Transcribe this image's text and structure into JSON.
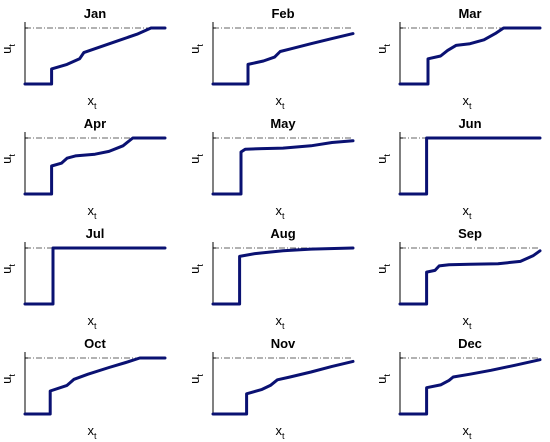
{
  "chart_data": {
    "type": "line",
    "grid": false,
    "series_color": "#0a1172",
    "ref_color": "#666666",
    "panels": [
      {
        "title": "Jan",
        "xlabel": "x",
        "xlabel_sub": "t",
        "ylabel": "u",
        "ylabel_sub": "t",
        "curve": [
          [
            0,
            0
          ],
          [
            0.19,
            0
          ],
          [
            0.19,
            0.27
          ],
          [
            0.3,
            0.35
          ],
          [
            0.39,
            0.45
          ],
          [
            0.42,
            0.56
          ],
          [
            0.5,
            0.63
          ],
          [
            0.65,
            0.76
          ],
          [
            0.8,
            0.89
          ],
          [
            0.9,
            1.0
          ],
          [
            1.0,
            1.0
          ]
        ]
      },
      {
        "title": "Feb",
        "xlabel": "x",
        "xlabel_sub": "t",
        "ylabel": "u",
        "ylabel_sub": "t",
        "curve": [
          [
            0,
            0
          ],
          [
            0.25,
            0
          ],
          [
            0.25,
            0.35
          ],
          [
            0.36,
            0.41
          ],
          [
            0.44,
            0.48
          ],
          [
            0.48,
            0.58
          ],
          [
            0.56,
            0.63
          ],
          [
            0.7,
            0.72
          ],
          [
            0.85,
            0.81
          ],
          [
            1.0,
            0.9
          ]
        ]
      },
      {
        "title": "Mar",
        "xlabel": "x",
        "xlabel_sub": "t",
        "ylabel": "u",
        "ylabel_sub": "t",
        "curve": [
          [
            0,
            0
          ],
          [
            0.2,
            0
          ],
          [
            0.2,
            0.45
          ],
          [
            0.29,
            0.5
          ],
          [
            0.34,
            0.6
          ],
          [
            0.4,
            0.69
          ],
          [
            0.5,
            0.72
          ],
          [
            0.6,
            0.79
          ],
          [
            0.68,
            0.9
          ],
          [
            0.74,
            1.0
          ],
          [
            1.0,
            1.0
          ]
        ]
      },
      {
        "title": "Apr",
        "xlabel": "x",
        "xlabel_sub": "t",
        "ylabel": "u",
        "ylabel_sub": "t",
        "curve": [
          [
            0,
            0
          ],
          [
            0.19,
            0
          ],
          [
            0.19,
            0.5
          ],
          [
            0.26,
            0.55
          ],
          [
            0.3,
            0.64
          ],
          [
            0.36,
            0.68
          ],
          [
            0.5,
            0.71
          ],
          [
            0.6,
            0.76
          ],
          [
            0.7,
            0.86
          ],
          [
            0.77,
            1.0
          ],
          [
            1.0,
            1.0
          ]
        ]
      },
      {
        "title": "May",
        "xlabel": "x",
        "xlabel_sub": "t",
        "ylabel": "u",
        "ylabel_sub": "t",
        "curve": [
          [
            0,
            0
          ],
          [
            0.2,
            0
          ],
          [
            0.2,
            0.75
          ],
          [
            0.23,
            0.8
          ],
          [
            0.35,
            0.81
          ],
          [
            0.5,
            0.82
          ],
          [
            0.7,
            0.86
          ],
          [
            0.85,
            0.92
          ],
          [
            1.0,
            0.95
          ]
        ]
      },
      {
        "title": "Jun",
        "xlabel": "x",
        "xlabel_sub": "t",
        "ylabel": "u",
        "ylabel_sub": "t",
        "curve": [
          [
            0,
            0
          ],
          [
            0.19,
            0
          ],
          [
            0.19,
            1.0
          ],
          [
            1.0,
            1.0
          ]
        ]
      },
      {
        "title": "Jul",
        "xlabel": "x",
        "xlabel_sub": "t",
        "ylabel": "u",
        "ylabel_sub": "t",
        "curve": [
          [
            0,
            0
          ],
          [
            0.2,
            0
          ],
          [
            0.2,
            1.0
          ],
          [
            1.0,
            1.0
          ]
        ]
      },
      {
        "title": "Aug",
        "xlabel": "x",
        "xlabel_sub": "t",
        "ylabel": "u",
        "ylabel_sub": "t",
        "curve": [
          [
            0,
            0
          ],
          [
            0.19,
            0
          ],
          [
            0.19,
            0.85
          ],
          [
            0.3,
            0.9
          ],
          [
            0.5,
            0.95
          ],
          [
            0.7,
            0.98
          ],
          [
            1.0,
            1.0
          ]
        ]
      },
      {
        "title": "Sep",
        "xlabel": "x",
        "xlabel_sub": "t",
        "ylabel": "u",
        "ylabel_sub": "t",
        "curve": [
          [
            0,
            0
          ],
          [
            0.19,
            0
          ],
          [
            0.19,
            0.57
          ],
          [
            0.25,
            0.6
          ],
          [
            0.28,
            0.68
          ],
          [
            0.35,
            0.7
          ],
          [
            0.5,
            0.71
          ],
          [
            0.7,
            0.72
          ],
          [
            0.86,
            0.76
          ],
          [
            0.95,
            0.86
          ],
          [
            1.0,
            0.95
          ]
        ]
      },
      {
        "title": "Oct",
        "xlabel": "x",
        "xlabel_sub": "t",
        "ylabel": "u",
        "ylabel_sub": "t",
        "curve": [
          [
            0,
            0
          ],
          [
            0.18,
            0
          ],
          [
            0.18,
            0.41
          ],
          [
            0.3,
            0.51
          ],
          [
            0.35,
            0.62
          ],
          [
            0.45,
            0.71
          ],
          [
            0.6,
            0.83
          ],
          [
            0.72,
            0.92
          ],
          [
            0.82,
            1.0
          ],
          [
            1.0,
            1.0
          ]
        ]
      },
      {
        "title": "Nov",
        "xlabel": "x",
        "xlabel_sub": "t",
        "ylabel": "u",
        "ylabel_sub": "t",
        "curve": [
          [
            0,
            0
          ],
          [
            0.24,
            0
          ],
          [
            0.24,
            0.36
          ],
          [
            0.35,
            0.44
          ],
          [
            0.41,
            0.51
          ],
          [
            0.46,
            0.61
          ],
          [
            0.55,
            0.66
          ],
          [
            0.7,
            0.75
          ],
          [
            0.85,
            0.85
          ],
          [
            1.0,
            0.94
          ]
        ]
      },
      {
        "title": "Dec",
        "xlabel": "x",
        "xlabel_sub": "t",
        "ylabel": "u",
        "ylabel_sub": "t",
        "curve": [
          [
            0,
            0
          ],
          [
            0.19,
            0
          ],
          [
            0.19,
            0.47
          ],
          [
            0.29,
            0.52
          ],
          [
            0.35,
            0.6
          ],
          [
            0.38,
            0.66
          ],
          [
            0.5,
            0.71
          ],
          [
            0.65,
            0.78
          ],
          [
            0.82,
            0.87
          ],
          [
            1.0,
            0.97
          ]
        ]
      }
    ]
  }
}
